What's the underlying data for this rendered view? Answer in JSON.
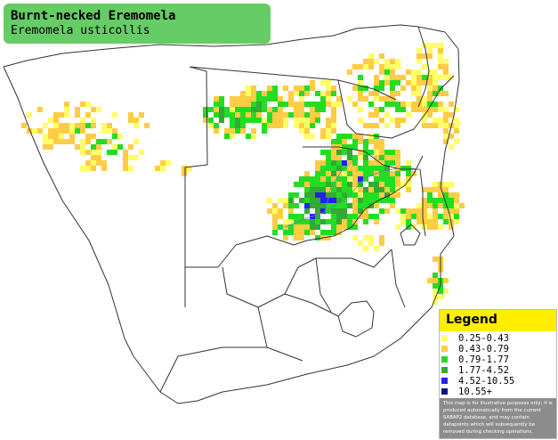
{
  "title": {
    "common_name": "Burnt-necked Eremomela",
    "scientific_name": "Eremomela usticollis"
  },
  "legend": {
    "title": "Legend",
    "items": [
      {
        "label": "0.25-0.43",
        "color": "#ffff66"
      },
      {
        "label": "0.43-0.79",
        "color": "#ffcc44"
      },
      {
        "label": "0.79-1.77",
        "color": "#22dd22"
      },
      {
        "label": "1.77-4.52",
        "color": "#33aa33"
      },
      {
        "label": "4.52-10.55",
        "color": "#2222ee"
      },
      {
        "label": "10.55+",
        "color": "#111188"
      }
    ],
    "note": "This map is for illustrative purposes only; it is produced automatically from the current SABAP2 database, and may contain datapoints which will subsequently be removed during checking operations."
  },
  "colors": {
    "title_background": "#66cc66",
    "legend_header": "#ffee00",
    "legend_note_background": "#8c8c8c",
    "border_lines": "#333333"
  }
}
